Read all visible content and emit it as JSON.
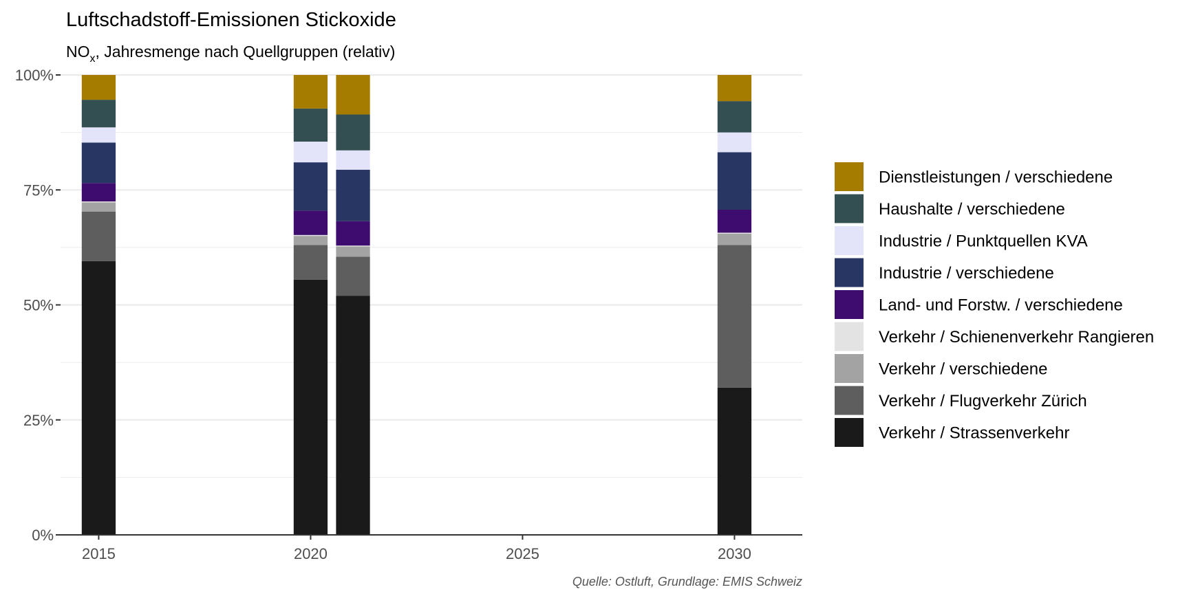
{
  "chart_data": {
    "type": "bar",
    "stacked": true,
    "title": "Luftschadstoff-Emissionen Stickoxide",
    "subtitle": {
      "main": "NO",
      "sub": "x",
      "rest": ", Jahresmenge nach Quellgruppen (relativ)"
    },
    "caption": "Quelle: Ostluft, Grundlage: EMIS Schweiz",
    "xlabel": "",
    "ylabel": "",
    "xlim": [
      2014.1,
      2031.6
    ],
    "ylim": [
      0,
      1
    ],
    "x_ticks": [
      2015,
      2020,
      2025,
      2030
    ],
    "y_ticks": [
      0,
      0.25,
      0.5,
      0.75,
      1
    ],
    "y_tick_labels": [
      "0%",
      "25%",
      "50%",
      "75%",
      "100%"
    ],
    "bar_width_years": 0.8,
    "grid": true,
    "legend_position": "right",
    "colors": {
      "grid": "#ebebeb",
      "axis": "#333333"
    },
    "x": [
      2015,
      2020,
      2021,
      2030
    ],
    "series": [
      {
        "name": "Verkehr / Strassenverkehr",
        "color": "#1a1a1a",
        "values": [
          0.595,
          0.555,
          0.52,
          0.32
        ]
      },
      {
        "name": "Verkehr / Flugverkehr Zürich",
        "color": "#5e5e5e",
        "values": [
          0.108,
          0.075,
          0.085,
          0.31
        ]
      },
      {
        "name": "Verkehr / verschiedene",
        "color": "#a3a3a3",
        "values": [
          0.02,
          0.02,
          0.022,
          0.025
        ]
      },
      {
        "name": "Verkehr / Schienenverkehr Rangieren",
        "color": "#e3e3e3",
        "values": [
          0.002,
          0.002,
          0.002,
          0.002
        ]
      },
      {
        "name": "Land- und Forstw. / verschiedene",
        "color": "#3d0c6e",
        "values": [
          0.04,
          0.053,
          0.053,
          0.05
        ]
      },
      {
        "name": "Industrie / verschiedene",
        "color": "#283663",
        "values": [
          0.088,
          0.105,
          0.112,
          0.125
        ]
      },
      {
        "name": "Industrie / Punktquellen KVA",
        "color": "#e3e3fa",
        "values": [
          0.033,
          0.045,
          0.042,
          0.043
        ]
      },
      {
        "name": "Haushalte / verschiedene",
        "color": "#344f52",
        "values": [
          0.06,
          0.072,
          0.078,
          0.068
        ]
      },
      {
        "name": "Dienstleistungen / verschiedene",
        "color": "#a67c00",
        "values": [
          0.054,
          0.073,
          0.086,
          0.057
        ]
      }
    ]
  }
}
